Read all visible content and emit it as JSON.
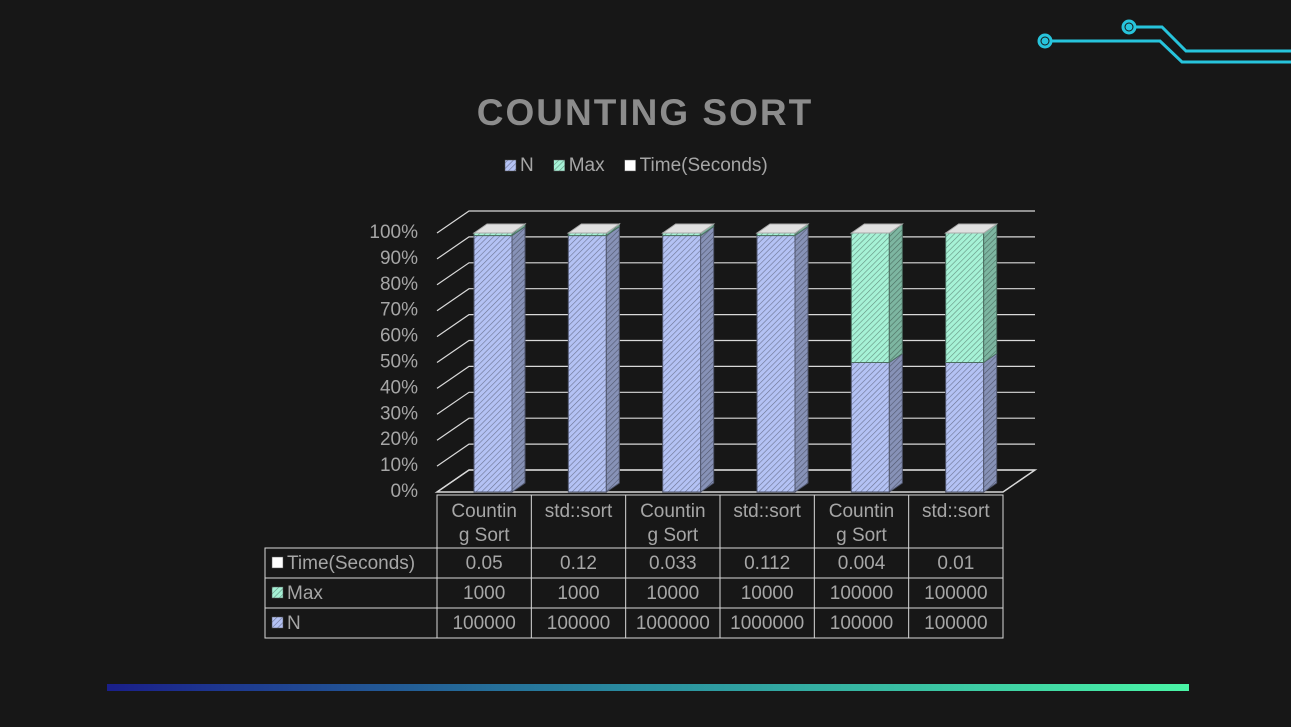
{
  "chart_data": {
    "type": "bar",
    "stacking": "percent",
    "title": "COUNTING SORT",
    "categories": [
      "Counting Sort",
      "std::sort",
      "Counting Sort",
      "std::sort",
      "Counting Sort",
      "std::sort"
    ],
    "series": [
      {
        "name": "N",
        "color": "#b4c2f4",
        "values": [
          100000,
          100000,
          1000000,
          1000000,
          100000,
          100000
        ]
      },
      {
        "name": "Max",
        "color": "#a6f2d6",
        "values": [
          1000,
          1000,
          10000,
          10000,
          100000,
          100000
        ]
      },
      {
        "name": "Time(Seconds)",
        "color": "#ffffff",
        "values": [
          0.05,
          0.12,
          0.033,
          0.112,
          0.004,
          0.01
        ]
      }
    ],
    "ylim": [
      0,
      100
    ],
    "yticks": [
      {
        "value": 0,
        "label": "0%"
      },
      {
        "value": 10,
        "label": "10%"
      },
      {
        "value": 20,
        "label": "20%"
      },
      {
        "value": 30,
        "label": "30%"
      },
      {
        "value": 40,
        "label": "40%"
      },
      {
        "value": 50,
        "label": "50%"
      },
      {
        "value": 60,
        "label": "60%"
      },
      {
        "value": 70,
        "label": "70%"
      },
      {
        "value": 80,
        "label": "80%"
      },
      {
        "value": 90,
        "label": "90%"
      },
      {
        "value": 100,
        "label": "100%"
      }
    ],
    "grid": true,
    "legend": "top",
    "data_table": true
  }
}
